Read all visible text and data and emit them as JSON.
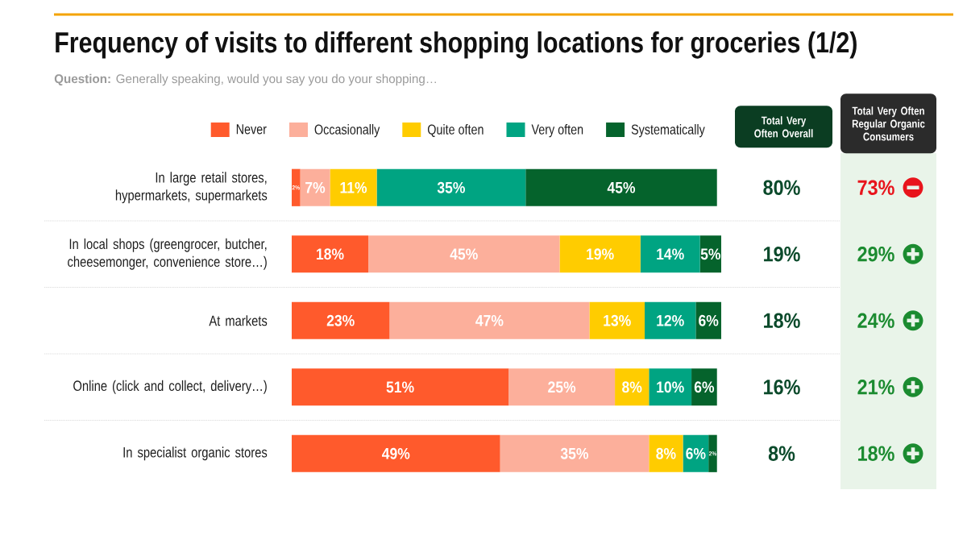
{
  "chart_data": [
    {
      "type": "bar",
      "orientation": "horizontal",
      "stacked": true,
      "title": "Frequency of visits to different shopping locations for groceries (1/2)",
      "subtitle": "**Question:** Generally speaking, would you say you do your shopping…",
      "categories": [
        "In large retail stores, hypermarkets, supermarkets",
        "In local shops (greengrocer, butcher, cheesemonger, convenience store…)",
        "At markets",
        "Online (click and collect, delivery…)",
        "In specialist organic stores"
      ],
      "series": [
        {
          "name": "Never",
          "color": "#FF5A2C",
          "values": [
            2,
            18,
            23,
            51,
            49
          ],
          "value_labels": [
            "2%",
            "18%",
            "23%",
            "51%",
            "49%"
          ]
        },
        {
          "name": "Occasionally",
          "color": "#FCAF9B",
          "values": [
            7,
            45,
            47,
            25,
            35
          ],
          "value_labels": [
            "7%",
            "45%",
            "47%",
            "25%",
            "35%"
          ]
        },
        {
          "name": "Quite often",
          "color": "#FFCC00",
          "values": [
            11,
            19,
            13,
            8,
            8
          ],
          "value_labels": [
            "11%",
            "19%",
            "13%",
            "8%",
            "8%"
          ]
        },
        {
          "name": "Very often",
          "color": "#00A482",
          "values": [
            35,
            14,
            12,
            10,
            6
          ],
          "value_labels": [
            "35%",
            "14%",
            "12%",
            "10%",
            "6%"
          ]
        },
        {
          "name": "Systematically",
          "color": "#05632C",
          "values": [
            45,
            5,
            6,
            6,
            2
          ],
          "value_labels": [
            "45%",
            "5%",
            "6%",
            "6%",
            "2%"
          ]
        }
      ],
      "legend": "top",
      "grid": "y"
    },
    {
      "type": "other",
      "title": "Total Very Often Overall",
      "values": [
        80,
        19,
        18,
        16,
        8
      ],
      "value_labels": [
        "80%",
        "19%",
        "18%",
        "16%",
        "8%"
      ],
      "color": "#0B4A2B"
    },
    {
      "type": "other",
      "title": "Total Very Often Regular Organic Consumers",
      "values": [
        73,
        29,
        24,
        21,
        18
      ],
      "value_labels": [
        "73%",
        "29%",
        "24%",
        "21%",
        "18%"
      ],
      "colors": [
        "#E8141C",
        "#1B8B30",
        "#1B8B30",
        "#1B8B30",
        "#1B8B30"
      ]
    }
  ]
}
